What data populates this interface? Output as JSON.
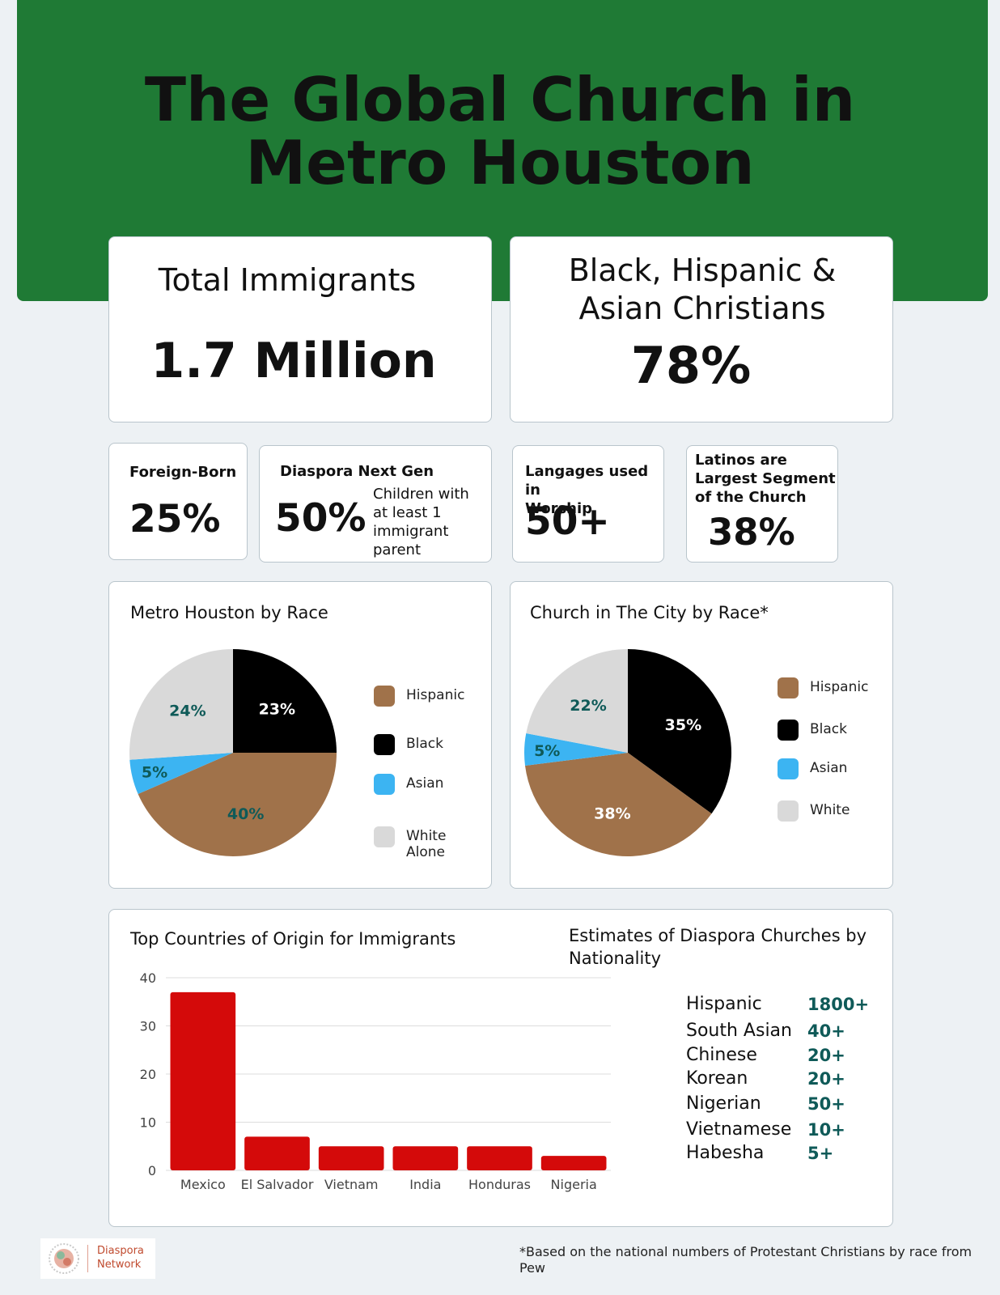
{
  "title": [
    "The Global Church in",
    "Metro Houston"
  ],
  "stats": {
    "total_immigrants": {
      "label": "Total Immigrants",
      "value": "1.7 Million"
    },
    "christians": {
      "label_line1": "Black, Hispanic &",
      "label_line2": "Asian Christians",
      "value": "78%"
    },
    "foreign_born": {
      "label": "Foreign-Born",
      "value": "25%"
    },
    "next_gen": {
      "label": "Diaspora Next Gen",
      "value": "50%",
      "note": [
        "Children with",
        "at least 1",
        "immigrant",
        "parent"
      ]
    },
    "languages": {
      "label": [
        "Langages used in",
        "Worship"
      ],
      "value": "50+"
    },
    "latinos": {
      "label": [
        "Latinos are",
        "Largest Segment",
        "of the Church"
      ],
      "value": "38%"
    }
  },
  "colors": {
    "hispanic": "#a0724a",
    "black": "#000000",
    "asian": "#3cb4f2",
    "white": "#d9d9d9",
    "bar": "#d40a0a",
    "banner": "#1f7a35",
    "teal": "#0f5a58"
  },
  "chart_data": [
    {
      "type": "pie",
      "title": "Metro Houston by Race",
      "labels": [
        "Hispanic",
        "Black",
        "Asian",
        "White Alone"
      ],
      "legend_lines": [
        [
          "Hispanic"
        ],
        [
          "Black"
        ],
        [
          "Asian"
        ],
        [
          "White",
          "Alone"
        ]
      ],
      "values": [
        40,
        23,
        5,
        24
      ],
      "value_labels": [
        "40%",
        "23%",
        "5%",
        "24%"
      ],
      "legend": "right"
    },
    {
      "type": "pie",
      "title": "Church in The City by Race*",
      "labels": [
        "Hispanic",
        "Black",
        "Asian",
        "White"
      ],
      "legend_lines": [
        [
          "Hispanic"
        ],
        [
          "Black"
        ],
        [
          "Asian"
        ],
        [
          "White"
        ]
      ],
      "values": [
        38,
        35,
        5,
        22
      ],
      "value_labels": [
        "38%",
        "35%",
        "5%",
        "22%"
      ],
      "legend": "right"
    },
    {
      "type": "bar",
      "title": "Top Countries of Origin for Immigrants",
      "categories": [
        "Mexico",
        "El Salvador",
        "Vietnam",
        "India",
        "Honduras",
        "Nigeria"
      ],
      "values": [
        37,
        7,
        5,
        5,
        5,
        3
      ],
      "ylim": [
        0,
        40
      ],
      "yticks": [
        0,
        10,
        20,
        30,
        40
      ],
      "grid": true
    }
  ],
  "estimates": {
    "title": [
      "Estimates of Diaspora Churches by",
      "Nationality"
    ],
    "rows": [
      {
        "name": "Hispanic",
        "value": "1800+"
      },
      {
        "name": "South Asian",
        "value": "40+"
      },
      {
        "name": "Chinese",
        "value": "20+"
      },
      {
        "name": "Korean",
        "value": "20+"
      },
      {
        "name": "Nigerian",
        "value": "50+"
      },
      {
        "name": "Vietnamese",
        "value": "10+"
      },
      {
        "name": "Habesha",
        "value": "5+"
      }
    ]
  },
  "footnote": "*Based on the national numbers of Protestant Christians by race from Pew",
  "logo": {
    "line1": "Diaspora",
    "line2": "Network"
  }
}
